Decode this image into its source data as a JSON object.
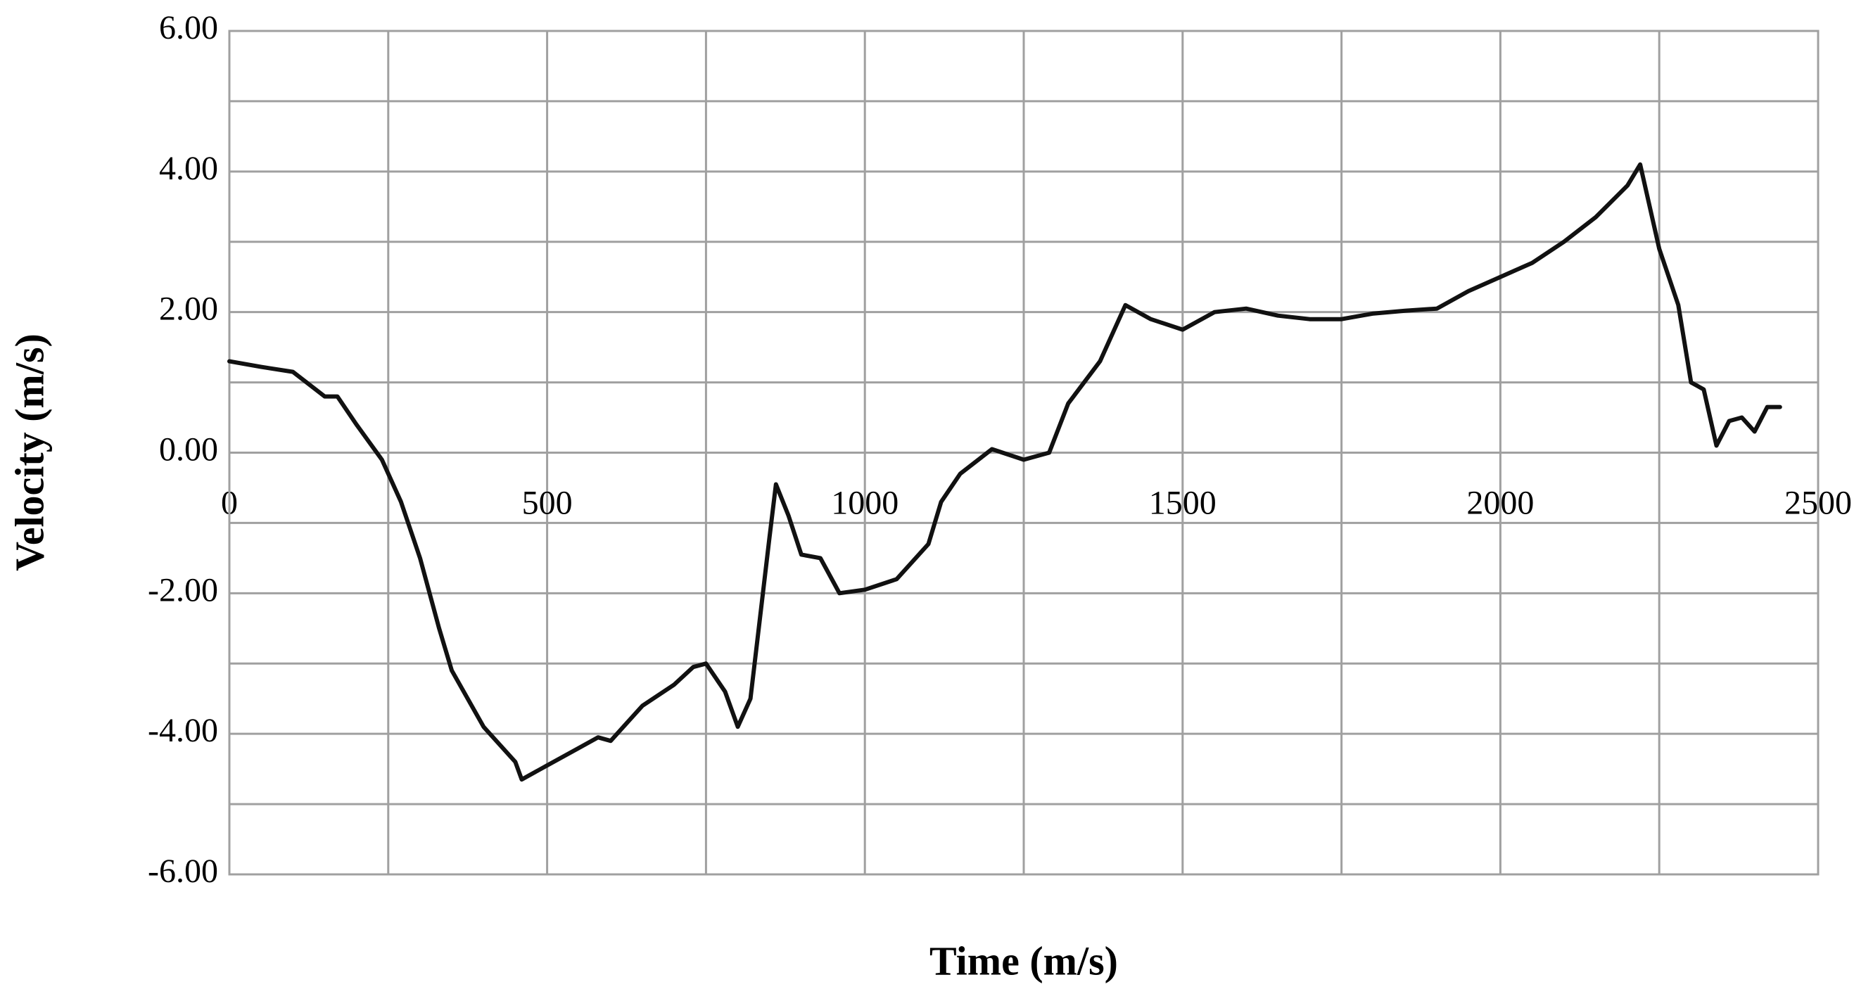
{
  "chart_data": {
    "type": "line",
    "xlabel": "Time (m/s)",
    "ylabel": "Velocity (m/s)",
    "x": [
      0,
      50,
      100,
      150,
      170,
      200,
      240,
      270,
      300,
      330,
      350,
      400,
      450,
      460,
      500,
      550,
      580,
      600,
      650,
      700,
      730,
      750,
      780,
      800,
      820,
      850,
      860,
      880,
      900,
      930,
      960,
      1000,
      1050,
      1100,
      1120,
      1150,
      1200,
      1250,
      1290,
      1320,
      1370,
      1410,
      1450,
      1500,
      1550,
      1600,
      1650,
      1700,
      1750,
      1800,
      1850,
      1900,
      1950,
      2000,
      2050,
      2100,
      2150,
      2200,
      2220,
      2250,
      2280,
      2300,
      2320,
      2340,
      2360,
      2380,
      2400,
      2420,
      2440
    ],
    "series": [
      {
        "name": "Velocity",
        "color": "#111111",
        "values": [
          1.3,
          1.22,
          1.15,
          0.8,
          0.8,
          0.4,
          -0.1,
          -0.7,
          -1.5,
          -2.5,
          -3.1,
          -3.9,
          -4.4,
          -4.65,
          -4.45,
          -4.2,
          -4.05,
          -4.1,
          -3.6,
          -3.3,
          -3.05,
          -3.0,
          -3.4,
          -3.9,
          -3.5,
          -1.2,
          -0.45,
          -0.9,
          -1.45,
          -1.5,
          -2.0,
          -1.95,
          -1.8,
          -1.3,
          -0.7,
          -0.3,
          0.05,
          -0.1,
          0.0,
          0.7,
          1.3,
          2.1,
          1.9,
          1.75,
          2.0,
          2.05,
          1.95,
          1.9,
          1.9,
          1.98,
          2.02,
          2.05,
          2.3,
          2.5,
          2.7,
          3.0,
          3.35,
          3.8,
          4.1,
          2.9,
          2.1,
          1.0,
          0.9,
          0.1,
          0.45,
          0.5,
          0.3,
          0.65,
          0.65
        ]
      }
    ],
    "xlim": [
      0,
      2500
    ],
    "xticks": [
      0,
      500,
      1000,
      1500,
      2000,
      2500
    ],
    "xminorticks": [
      250,
      750,
      1250,
      1750,
      2250
    ],
    "ylim": [
      -6,
      6
    ],
    "yticks": [
      {
        "value": -6,
        "label": "-6.00"
      },
      {
        "value": -4,
        "label": "-4.00"
      },
      {
        "value": -2,
        "label": "-2.00"
      },
      {
        "value": 0,
        "label": "0.00"
      },
      {
        "value": 2,
        "label": "2.00"
      },
      {
        "value": 4,
        "label": "4.00"
      },
      {
        "value": 6,
        "label": "6.00"
      }
    ],
    "yminorticks": [
      -5,
      -3,
      -1,
      1,
      3,
      5
    ],
    "grid": true
  }
}
